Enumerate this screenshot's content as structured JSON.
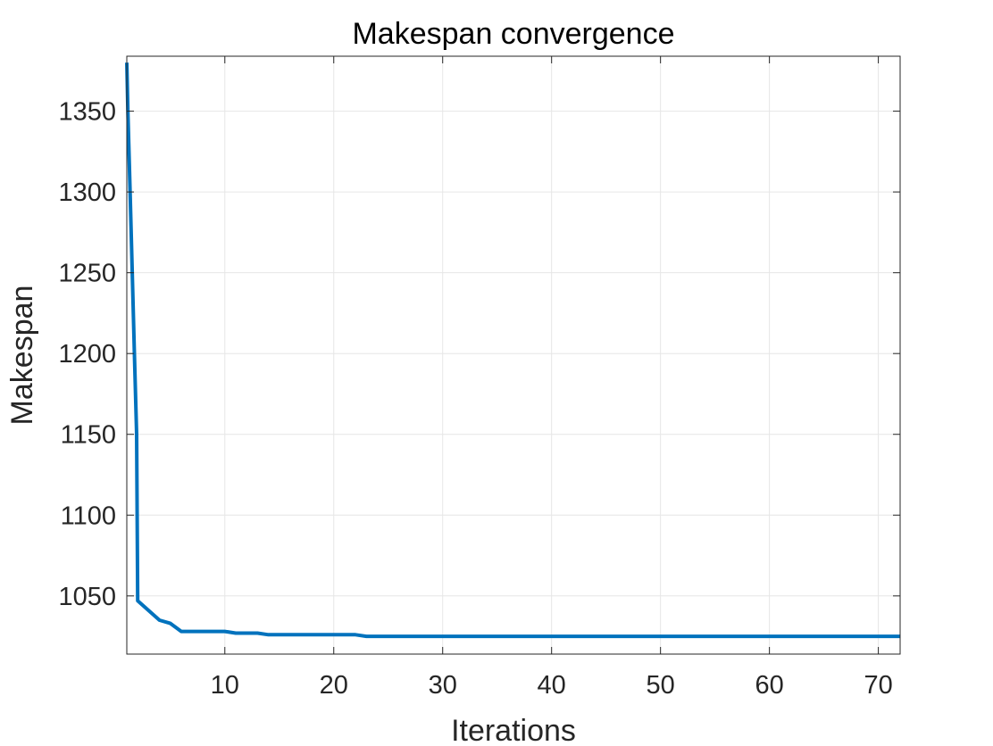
{
  "chart_data": {
    "type": "line",
    "title": "Makespan convergence",
    "xlabel": "Iterations",
    "ylabel": "Makespan",
    "xlim": [
      1,
      72
    ],
    "ylim": [
      1014,
      1384
    ],
    "xticks": [
      10,
      20,
      30,
      40,
      50,
      60,
      70
    ],
    "yticks": [
      1050,
      1100,
      1150,
      1200,
      1250,
      1300,
      1350
    ],
    "grid": true,
    "series": [
      {
        "color": "#0072BD",
        "x": [
          1,
          1.1,
          1.3,
          1.5,
          1.7,
          1.9,
          2,
          3,
          4,
          5,
          6,
          7,
          8,
          9,
          10,
          11,
          12,
          13,
          14,
          15,
          16,
          17,
          18,
          19,
          20,
          21,
          22,
          23,
          30,
          40,
          50,
          60,
          72
        ],
        "y": [
          1380,
          1350,
          1300,
          1250,
          1200,
          1150,
          1047,
          1041,
          1035,
          1033,
          1028,
          1028,
          1028,
          1028,
          1028,
          1027,
          1027,
          1027,
          1026,
          1026,
          1026,
          1026,
          1026,
          1026,
          1026,
          1026,
          1026,
          1025,
          1025,
          1025,
          1025,
          1025,
          1025
        ]
      }
    ]
  }
}
